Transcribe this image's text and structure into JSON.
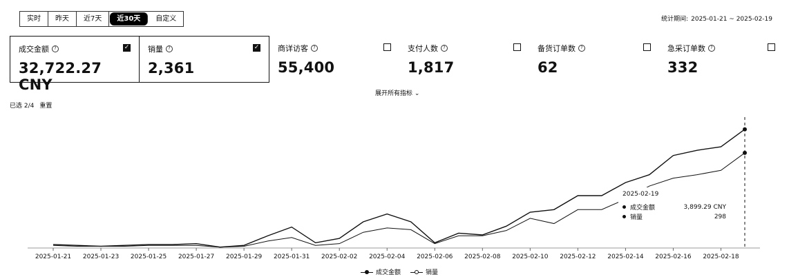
{
  "tabs": [
    {
      "label": "实时",
      "active": false
    },
    {
      "label": "昨天",
      "active": false
    },
    {
      "label": "近7天",
      "active": false
    },
    {
      "label": "近30天",
      "active": true
    },
    {
      "label": "自定义",
      "active": false
    }
  ],
  "range": {
    "label": "统计期间:",
    "value": "2025-01-21 ~ 2025-02-19"
  },
  "metrics": [
    {
      "name": "成交金额",
      "value": "32,722.27 CNY",
      "checked": true
    },
    {
      "name": "销量",
      "value": "2,361",
      "checked": true
    },
    {
      "name": "商详访客",
      "value": "55,400",
      "checked": false
    },
    {
      "name": "支付人数",
      "value": "1,817",
      "checked": false
    },
    {
      "name": "备货订单数",
      "value": "62",
      "checked": false
    },
    {
      "name": "急采订单数",
      "value": "332",
      "checked": false
    }
  ],
  "expand_label": "展开所有指标",
  "selection": {
    "count": "已选 2/4",
    "item": "重置"
  },
  "tooltip": {
    "date": "2025-02-19",
    "rows": [
      {
        "name": "成交金额",
        "value": "3,899.29 CNY"
      },
      {
        "name": "销量",
        "value": "298"
      }
    ]
  },
  "legend": [
    {
      "name": "成交金额",
      "style": "filled"
    },
    {
      "name": "销量",
      "style": "hollow"
    }
  ],
  "chart_data": {
    "type": "line",
    "x": [
      "2025-01-21",
      "2025-01-22",
      "2025-01-23",
      "2025-01-24",
      "2025-01-25",
      "2025-01-26",
      "2025-01-27",
      "2025-01-28",
      "2025-01-29",
      "2025-01-30",
      "2025-01-31",
      "2025-02-01",
      "2025-02-02",
      "2025-02-03",
      "2025-02-04",
      "2025-02-05",
      "2025-02-06",
      "2025-02-07",
      "2025-02-08",
      "2025-02-09",
      "2025-02-10",
      "2025-02-11",
      "2025-02-12",
      "2025-02-13",
      "2025-02-14",
      "2025-02-15",
      "2025-02-16",
      "2025-02-17",
      "2025-02-18",
      "2025-02-19"
    ],
    "tick_labels": [
      "2025-01-21",
      "2025-01-23",
      "2025-01-25",
      "2025-01-27",
      "2025-01-29",
      "2025-01-31",
      "2025-02-02",
      "2025-02-04",
      "2025-02-06",
      "2025-02-08",
      "2025-02-10",
      "2025-02-12",
      "2025-02-14",
      "2025-02-16",
      "2025-02-18"
    ],
    "series": [
      {
        "name": "成交金额",
        "values": [
          4,
          3,
          2,
          3,
          4,
          4,
          5,
          1,
          3,
          14,
          24,
          6,
          11,
          30,
          39,
          30,
          6,
          17,
          15,
          25,
          41,
          44,
          60,
          60,
          75,
          84,
          106,
          112,
          116,
          136
        ]
      },
      {
        "name": "销量",
        "values": [
          3,
          2,
          2,
          2,
          3,
          3,
          3,
          1,
          2,
          8,
          12,
          3,
          5,
          18,
          23,
          21,
          5,
          14,
          14,
          20,
          34,
          28,
          44,
          44,
          56,
          71,
          80,
          84,
          89,
          109
        ]
      }
    ],
    "ylim": [
      0,
      150
    ],
    "grid": false,
    "legend_position": "bottom"
  }
}
